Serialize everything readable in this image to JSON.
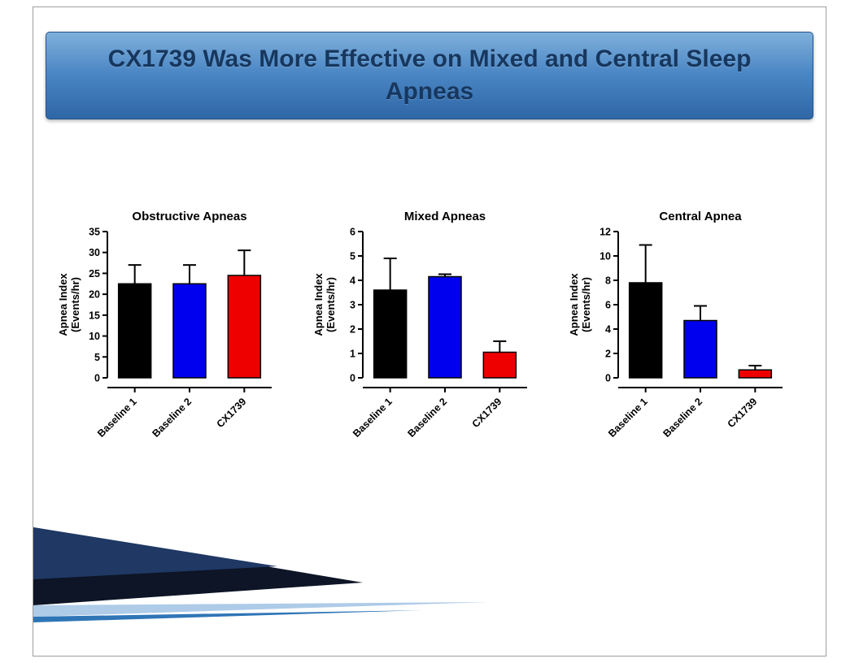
{
  "slide": {
    "title": "CX1739 Was More Effective on Mixed and Central Sleep Apneas"
  },
  "colors": {
    "banner_top": "#7fb0dc",
    "banner_bottom": "#2f66a6",
    "banner_text": "#17375e",
    "swoosh_black": "#0d1526",
    "swoosh_navy": "#1f3864",
    "swoosh_lightblue": "#aecbe8",
    "swoosh_blue": "#2e75b6"
  },
  "chart_data": [
    {
      "type": "bar",
      "title": "Obstructive Apneas",
      "ylabel_line1": "Apnea Index",
      "ylabel_line2": "(Events/hr)",
      "categories": [
        "Baseline 1",
        "Baseline 2",
        "CX1739"
      ],
      "values": [
        22.5,
        22.5,
        24.5
      ],
      "errors_upper": [
        4.5,
        4.5,
        6.0
      ],
      "bar_colors": [
        "#000000",
        "#0000ee",
        "#ee0000"
      ],
      "ylim": [
        0,
        35
      ],
      "ytick_step": 5,
      "grid": false,
      "legend": false
    },
    {
      "type": "bar",
      "title": "Mixed Apneas",
      "ylabel_line1": "Apnea Index",
      "ylabel_line2": "(Events/hr)",
      "categories": [
        "Baseline 1",
        "Baseline 2",
        "CX1739"
      ],
      "values": [
        3.6,
        4.15,
        1.05
      ],
      "errors_upper": [
        1.3,
        0.1,
        0.45
      ],
      "bar_colors": [
        "#000000",
        "#0000ee",
        "#ee0000"
      ],
      "ylim": [
        0,
        6
      ],
      "ytick_step": 1,
      "grid": false,
      "legend": false
    },
    {
      "type": "bar",
      "title": "Central  Apnea",
      "ylabel_line1": "Apnea Index",
      "ylabel_line2": "(Events/hr)",
      "categories": [
        "Baseline 1",
        "Baseline 2",
        "CX1739"
      ],
      "values": [
        7.8,
        4.7,
        0.65
      ],
      "errors_upper": [
        3.1,
        1.2,
        0.35
      ],
      "bar_colors": [
        "#000000",
        "#0000ee",
        "#ee0000"
      ],
      "ylim": [
        0,
        12
      ],
      "ytick_step": 2,
      "grid": false,
      "legend": false
    }
  ]
}
